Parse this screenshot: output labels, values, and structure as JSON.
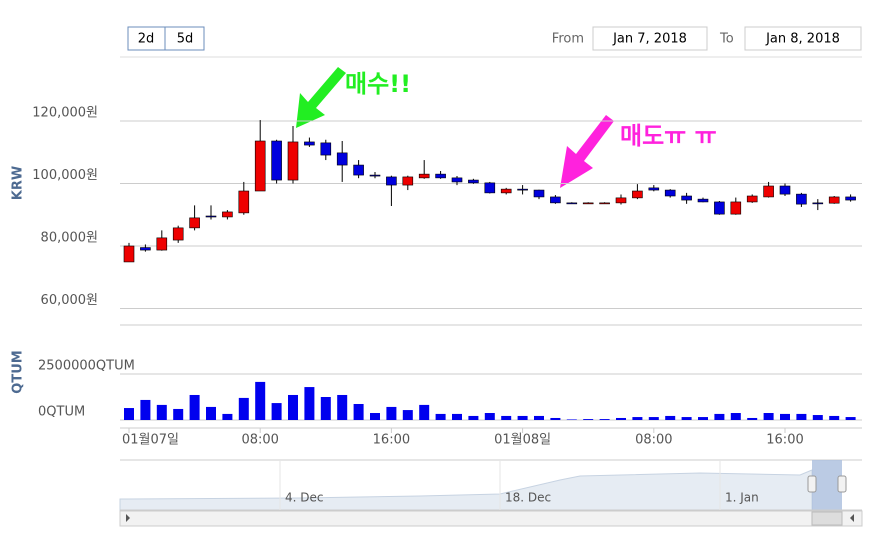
{
  "chart_data": {
    "type": "candlestick",
    "range_buttons": [
      "2d",
      "5d"
    ],
    "from_label": "From",
    "from": "Jan 7, 2018",
    "to_label": "To",
    "to": "Jan 8, 2018",
    "y_title": "KRW",
    "categories": [
      "01월07일",
      null,
      null,
      null,
      null,
      null,
      null,
      null,
      "08:00",
      null,
      null,
      null,
      null,
      null,
      null,
      null,
      "16:00",
      null,
      null,
      null,
      null,
      null,
      null,
      null,
      "01월08일",
      null,
      null,
      null,
      null,
      null,
      null,
      null,
      "08:00",
      null,
      null,
      null,
      null,
      null,
      null,
      null,
      "16:00",
      null,
      null,
      null,
      null
    ],
    "open": [
      74900,
      79500,
      78700,
      81900,
      85800,
      89600,
      89300,
      90600,
      97600,
      113600,
      101100,
      113300,
      113000,
      109800,
      105900,
      102700,
      102100,
      99500,
      101800,
      103000,
      101800,
      101100,
      100200,
      97000,
      98200,
      97900,
      95700,
      93800,
      93700,
      93800,
      93800,
      95400,
      98600,
      97900,
      96000,
      95000,
      94100,
      90200,
      94100,
      95700,
      99200,
      96600,
      93800,
      93700,
      95700
    ],
    "high": [
      81000,
      80500,
      85000,
      86500,
      93000,
      93000,
      91500,
      100500,
      120300,
      114000,
      118400,
      114700,
      114000,
      113600,
      107500,
      103700,
      102500,
      102500,
      107500,
      104000,
      102400,
      101500,
      100500,
      98600,
      99500,
      98000,
      96300,
      94000,
      94000,
      94000,
      96500,
      99800,
      99500,
      98200,
      97000,
      95500,
      94400,
      95500,
      96500,
      100500,
      100000,
      97000,
      95000,
      96000,
      96500
    ],
    "low": [
      74900,
      78200,
      78500,
      81000,
      85000,
      88500,
      88500,
      90000,
      97600,
      100000,
      100000,
      111700,
      107500,
      100500,
      101700,
      101700,
      92800,
      97900,
      101500,
      101500,
      99500,
      99900,
      96800,
      96500,
      96500,
      95000,
      93500,
      93500,
      93500,
      93500,
      93300,
      95000,
      97500,
      95500,
      93500,
      94000,
      90000,
      90000,
      93800,
      95500,
      96000,
      92500,
      91500,
      93500,
      94200
    ],
    "close": [
      80000,
      78700,
      82600,
      85800,
      89000,
      89300,
      90900,
      97600,
      113600,
      101100,
      113300,
      112300,
      109100,
      105900,
      102700,
      102400,
      99500,
      102100,
      103000,
      101800,
      100500,
      100200,
      97000,
      98200,
      98000,
      95700,
      93800,
      93700,
      93800,
      93800,
      95400,
      97600,
      97900,
      96000,
      94700,
      94100,
      90200,
      94100,
      96000,
      99200,
      96600,
      93400,
      93700,
      95700,
      94700
    ],
    "up_color": "#ee0000",
    "down_color": "#0000dd",
    "ylim": [
      54720,
      140480
    ],
    "yticks": [
      {
        "value": 60000,
        "label": "60,000원"
      },
      {
        "value": 80000,
        "label": "80,000원"
      },
      {
        "value": 100000,
        "label": "100,000원"
      },
      {
        "value": 120000,
        "label": "120,000원"
      }
    ],
    "volume": {
      "title": "QTUM",
      "values": [
        650000,
        1090000,
        820000,
        600000,
        1360000,
        710000,
        330000,
        1200000,
        2070000,
        920000,
        1360000,
        1790000,
        1250000,
        1360000,
        870000,
        380000,
        710000,
        540000,
        820000,
        330000,
        330000,
        220000,
        380000,
        220000,
        220000,
        220000,
        110000,
        30000,
        50000,
        50000,
        110000,
        160000,
        160000,
        220000,
        160000,
        160000,
        330000,
        380000,
        110000,
        380000,
        330000,
        330000,
        270000,
        220000,
        160000
      ],
      "color": "#0000ee",
      "ylim": [
        0,
        2500000
      ],
      "yticks": [
        {
          "value": 0,
          "label": "0QTUM"
        },
        {
          "value": 2500000,
          "label": "2500000QTUM"
        }
      ]
    },
    "annotations": [
      {
        "text": "매수!!",
        "color": "#22ee22"
      },
      {
        "text": "매도ㅠ ㅠ",
        "color": "#ff22dd"
      }
    ],
    "navigator_labels": [
      "4. Dec",
      "18. Dec",
      "1. Jan"
    ],
    "grid": true
  }
}
